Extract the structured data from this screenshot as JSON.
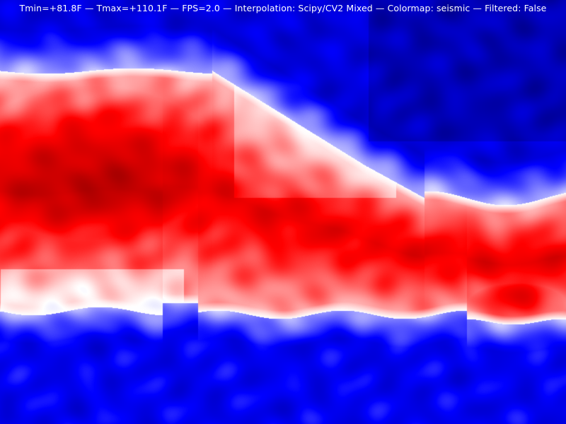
{
  "overlay": {
    "status_text": "Tmin=+81.8F — Tmax=+110.1F — FPS=2.0 — Interpolation: Scipy/CV2 Mixed — Colormap: seismic — Filtered: False"
  },
  "readings": {
    "tmin": "+81.8F",
    "tmax": "+110.1F",
    "fps": "2.0",
    "interpolation": "Scipy/CV2 Mixed",
    "colormap": "seismic",
    "filtered": "False"
  },
  "colors": {
    "cold": "#0000ff",
    "neutral": "#ffffff",
    "hot": "#ff0000",
    "deep_hot": "#a00000",
    "deep_cold": "#00004c"
  }
}
